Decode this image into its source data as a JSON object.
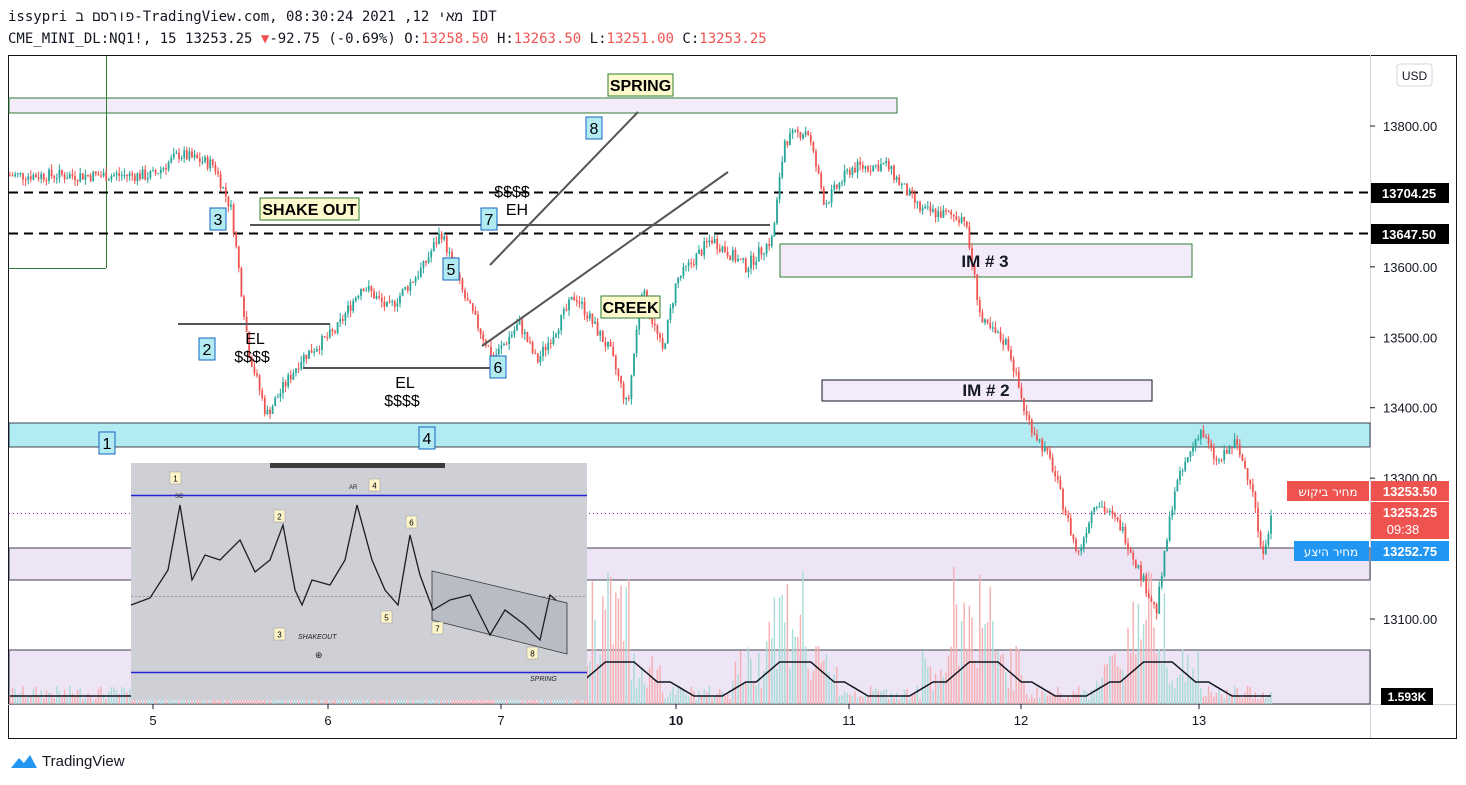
{
  "header": {
    "line1": "issypri פורסם ב-TradingView.com, מאי 12, 2021 08:30:24 IDT",
    "symbol": "CME_MINI_DL:NQ1!, 15",
    "last": "13253.25",
    "arrow": "▼",
    "change": "-92.75 (-0.69%)",
    "o_label": "O:",
    "o_value": "13258.50",
    "h_label": "H:",
    "h_value": "13263.50",
    "l_label": "L:",
    "l_value": "13251.00",
    "c_label": "C:",
    "c_value": "13253.25"
  },
  "currency": "USD",
  "price_axis": {
    "ticks": [
      "13800.00",
      "13600.00",
      "13500.00",
      "13400.00",
      "13300.00",
      "13100.00"
    ]
  },
  "price_tags": {
    "level_upper": "13704.25",
    "level_lower": "13647.50",
    "ask_label": "מחיר ביקוש",
    "ask_value": "13253.50",
    "last_value": "13253.25",
    "countdown": "09:38",
    "bid_label": "מחיר היצע",
    "bid_value": "13252.75",
    "volume": "1.593K"
  },
  "time_axis": {
    "labels": [
      "5",
      "6",
      "7",
      "10",
      "11",
      "12",
      "13"
    ]
  },
  "annotations": {
    "spring": "SPRING",
    "shake_out": "SHAKE OUT",
    "creek": "CREEK",
    "im3": "IM # 3",
    "im2": "IM # 2",
    "el": "EL",
    "dollars": "$$$$",
    "eh": "EH",
    "n1": "1",
    "n2": "2",
    "n3": "3",
    "n4": "4",
    "n5": "5",
    "n6": "6",
    "n7": "7",
    "n8": "8"
  },
  "inset": {
    "labels": [
      "1",
      "2",
      "3",
      "4",
      "5",
      "6",
      "7",
      "8"
    ],
    "shakeout": "SHAKEOUT",
    "spring": "SPRING",
    "ar": "AR",
    "sc": "SC"
  },
  "chart_data": {
    "type": "candlestick",
    "x_labels": [
      "5",
      "6",
      "7",
      "10",
      "11",
      "12",
      "13"
    ],
    "ylim": [
      13000,
      13850
    ],
    "price_path": [
      {
        "x": 0.0,
        "y": 13730
      },
      {
        "x": 0.15,
        "y": 13760
      },
      {
        "x": 0.35,
        "y": 13745
      },
      {
        "x": 0.45,
        "y": 13680
      },
      {
        "x": 0.55,
        "y": 13480
      },
      {
        "x": 0.65,
        "y": 13390
      },
      {
        "x": 0.85,
        "y": 13470
      },
      {
        "x": 1.05,
        "y": 13510
      },
      {
        "x": 1.2,
        "y": 13575
      },
      {
        "x": 1.35,
        "y": 13540
      },
      {
        "x": 1.55,
        "y": 13600
      },
      {
        "x": 1.65,
        "y": 13650
      },
      {
        "x": 1.78,
        "y": 13560
      },
      {
        "x": 1.95,
        "y": 13470
      },
      {
        "x": 2.1,
        "y": 13520
      },
      {
        "x": 2.2,
        "y": 13465
      },
      {
        "x": 2.42,
        "y": 13560
      },
      {
        "x": 2.62,
        "y": 13480
      },
      {
        "x": 2.72,
        "y": 13400
      },
      {
        "x": 2.8,
        "y": 13570
      },
      {
        "x": 2.92,
        "y": 13480
      },
      {
        "x": 3.0,
        "y": 13580
      },
      {
        "x": 3.2,
        "y": 13640
      },
      {
        "x": 3.4,
        "y": 13600
      },
      {
        "x": 3.55,
        "y": 13640
      },
      {
        "x": 3.62,
        "y": 13780
      },
      {
        "x": 3.75,
        "y": 13795
      },
      {
        "x": 3.85,
        "y": 13690
      },
      {
        "x": 4.0,
        "y": 13740
      },
      {
        "x": 4.2,
        "y": 13745
      },
      {
        "x": 4.4,
        "y": 13680
      },
      {
        "x": 4.65,
        "y": 13670
      },
      {
        "x": 4.75,
        "y": 13520
      },
      {
        "x": 4.9,
        "y": 13490
      },
      {
        "x": 5.0,
        "y": 13390
      },
      {
        "x": 5.15,
        "y": 13320
      },
      {
        "x": 5.3,
        "y": 13190
      },
      {
        "x": 5.4,
        "y": 13270
      },
      {
        "x": 5.55,
        "y": 13230
      },
      {
        "x": 5.65,
        "y": 13170
      },
      {
        "x": 5.75,
        "y": 13110
      },
      {
        "x": 5.85,
        "y": 13280
      },
      {
        "x": 6.0,
        "y": 13370
      },
      {
        "x": 6.1,
        "y": 13320
      },
      {
        "x": 6.2,
        "y": 13350
      },
      {
        "x": 6.3,
        "y": 13290
      },
      {
        "x": 6.35,
        "y": 13190
      },
      {
        "x": 6.42,
        "y": 13253
      }
    ],
    "levels": [
      13704.25,
      13647.5
    ],
    "last_price": 13253.25,
    "volume_last": "1.593K"
  },
  "colors": {
    "up": "#26a69a",
    "down": "#ef5350",
    "zone": "#b2ebf2",
    "im_box": "#f3eafa",
    "teal_label": "#b2ebf2",
    "yellow_label": "#fffacd",
    "ask": "#ef5350",
    "bid": "#2196f3"
  }
}
